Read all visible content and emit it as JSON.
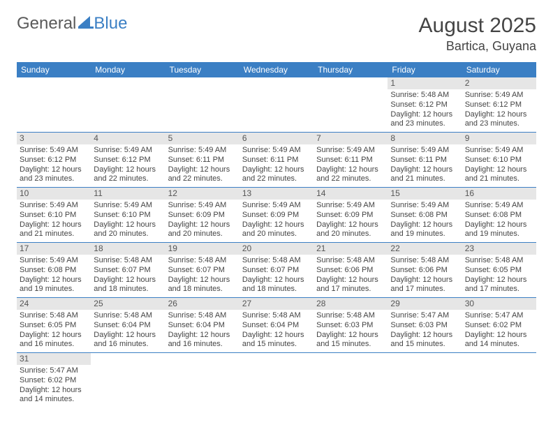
{
  "logo": {
    "general": "General",
    "blue": "Blue"
  },
  "title": {
    "month": "August 2025",
    "location": "Bartica, Guyana"
  },
  "colors": {
    "header_bg": "#3b7fc4",
    "header_text": "#ffffff",
    "daynum_bg": "#e6e6e6",
    "row_border": "#3b7fc4",
    "text": "#444444"
  },
  "weekdays": [
    "Sunday",
    "Monday",
    "Tuesday",
    "Wednesday",
    "Thursday",
    "Friday",
    "Saturday"
  ],
  "labels": {
    "sunrise": "Sunrise:",
    "sunset": "Sunset:",
    "daylight": "Daylight:"
  },
  "weeks": [
    [
      null,
      null,
      null,
      null,
      null,
      {
        "d": "1",
        "sr": "5:48 AM",
        "ss": "6:12 PM",
        "dl": "12 hours and 23 minutes."
      },
      {
        "d": "2",
        "sr": "5:49 AM",
        "ss": "6:12 PM",
        "dl": "12 hours and 23 minutes."
      }
    ],
    [
      {
        "d": "3",
        "sr": "5:49 AM",
        "ss": "6:12 PM",
        "dl": "12 hours and 23 minutes."
      },
      {
        "d": "4",
        "sr": "5:49 AM",
        "ss": "6:12 PM",
        "dl": "12 hours and 22 minutes."
      },
      {
        "d": "5",
        "sr": "5:49 AM",
        "ss": "6:11 PM",
        "dl": "12 hours and 22 minutes."
      },
      {
        "d": "6",
        "sr": "5:49 AM",
        "ss": "6:11 PM",
        "dl": "12 hours and 22 minutes."
      },
      {
        "d": "7",
        "sr": "5:49 AM",
        "ss": "6:11 PM",
        "dl": "12 hours and 22 minutes."
      },
      {
        "d": "8",
        "sr": "5:49 AM",
        "ss": "6:11 PM",
        "dl": "12 hours and 21 minutes."
      },
      {
        "d": "9",
        "sr": "5:49 AM",
        "ss": "6:10 PM",
        "dl": "12 hours and 21 minutes."
      }
    ],
    [
      {
        "d": "10",
        "sr": "5:49 AM",
        "ss": "6:10 PM",
        "dl": "12 hours and 21 minutes."
      },
      {
        "d": "11",
        "sr": "5:49 AM",
        "ss": "6:10 PM",
        "dl": "12 hours and 20 minutes."
      },
      {
        "d": "12",
        "sr": "5:49 AM",
        "ss": "6:09 PM",
        "dl": "12 hours and 20 minutes."
      },
      {
        "d": "13",
        "sr": "5:49 AM",
        "ss": "6:09 PM",
        "dl": "12 hours and 20 minutes."
      },
      {
        "d": "14",
        "sr": "5:49 AM",
        "ss": "6:09 PM",
        "dl": "12 hours and 20 minutes."
      },
      {
        "d": "15",
        "sr": "5:49 AM",
        "ss": "6:08 PM",
        "dl": "12 hours and 19 minutes."
      },
      {
        "d": "16",
        "sr": "5:49 AM",
        "ss": "6:08 PM",
        "dl": "12 hours and 19 minutes."
      }
    ],
    [
      {
        "d": "17",
        "sr": "5:49 AM",
        "ss": "6:08 PM",
        "dl": "12 hours and 19 minutes."
      },
      {
        "d": "18",
        "sr": "5:48 AM",
        "ss": "6:07 PM",
        "dl": "12 hours and 18 minutes."
      },
      {
        "d": "19",
        "sr": "5:48 AM",
        "ss": "6:07 PM",
        "dl": "12 hours and 18 minutes."
      },
      {
        "d": "20",
        "sr": "5:48 AM",
        "ss": "6:07 PM",
        "dl": "12 hours and 18 minutes."
      },
      {
        "d": "21",
        "sr": "5:48 AM",
        "ss": "6:06 PM",
        "dl": "12 hours and 17 minutes."
      },
      {
        "d": "22",
        "sr": "5:48 AM",
        "ss": "6:06 PM",
        "dl": "12 hours and 17 minutes."
      },
      {
        "d": "23",
        "sr": "5:48 AM",
        "ss": "6:05 PM",
        "dl": "12 hours and 17 minutes."
      }
    ],
    [
      {
        "d": "24",
        "sr": "5:48 AM",
        "ss": "6:05 PM",
        "dl": "12 hours and 16 minutes."
      },
      {
        "d": "25",
        "sr": "5:48 AM",
        "ss": "6:04 PM",
        "dl": "12 hours and 16 minutes."
      },
      {
        "d": "26",
        "sr": "5:48 AM",
        "ss": "6:04 PM",
        "dl": "12 hours and 16 minutes."
      },
      {
        "d": "27",
        "sr": "5:48 AM",
        "ss": "6:04 PM",
        "dl": "12 hours and 15 minutes."
      },
      {
        "d": "28",
        "sr": "5:48 AM",
        "ss": "6:03 PM",
        "dl": "12 hours and 15 minutes."
      },
      {
        "d": "29",
        "sr": "5:47 AM",
        "ss": "6:03 PM",
        "dl": "12 hours and 15 minutes."
      },
      {
        "d": "30",
        "sr": "5:47 AM",
        "ss": "6:02 PM",
        "dl": "12 hours and 14 minutes."
      }
    ],
    [
      {
        "d": "31",
        "sr": "5:47 AM",
        "ss": "6:02 PM",
        "dl": "12 hours and 14 minutes."
      },
      null,
      null,
      null,
      null,
      null,
      null
    ]
  ]
}
